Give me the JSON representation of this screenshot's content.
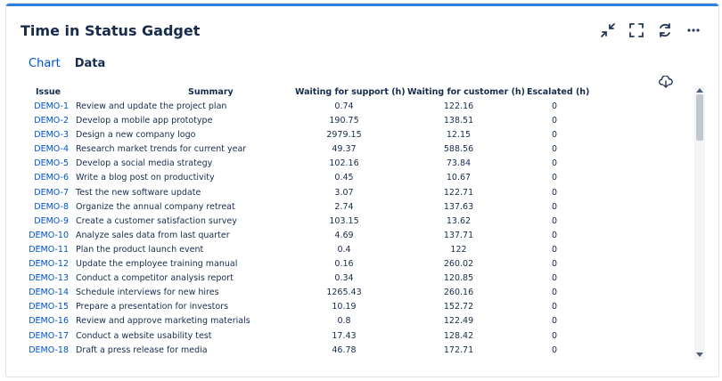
{
  "gadget": {
    "title": "Time in Status Gadget",
    "icons": [
      "collapse-icon",
      "fullscreen-icon",
      "refresh-icon",
      "more-icon"
    ],
    "accent_color": "#2b7fe0"
  },
  "tabs": [
    {
      "label": "Chart",
      "active": false
    },
    {
      "label": "Data",
      "active": true
    }
  ],
  "table": {
    "headers": {
      "issue": "Issue",
      "summary": "Summary",
      "waiting_support": "Waiting for support (h)",
      "waiting_customer": "Waiting for customer (h)",
      "escalated": "Escalated (h)"
    },
    "rows": [
      {
        "issue": "DEMO-1",
        "summary": "Review and update the project plan",
        "ws": "0.74",
        "wc": "122.16",
        "esc": "0"
      },
      {
        "issue": "DEMO-2",
        "summary": "Develop a mobile app prototype",
        "ws": "190.75",
        "wc": "138.51",
        "esc": "0"
      },
      {
        "issue": "DEMO-3",
        "summary": "Design a new company logo",
        "ws": "2979.15",
        "wc": "12.15",
        "esc": "0"
      },
      {
        "issue": "DEMO-4",
        "summary": "Research market trends for current year",
        "ws": "49.37",
        "wc": "588.56",
        "esc": "0"
      },
      {
        "issue": "DEMO-5",
        "summary": "Develop a social media strategy",
        "ws": "102.16",
        "wc": "73.84",
        "esc": "0"
      },
      {
        "issue": "DEMO-6",
        "summary": "Write a blog post on productivity",
        "ws": "0.45",
        "wc": "10.67",
        "esc": "0"
      },
      {
        "issue": "DEMO-7",
        "summary": "Test the new software update",
        "ws": "3.07",
        "wc": "122.71",
        "esc": "0"
      },
      {
        "issue": "DEMO-8",
        "summary": "Organize the annual company retreat",
        "ws": "2.74",
        "wc": "137.63",
        "esc": "0"
      },
      {
        "issue": "DEMO-9",
        "summary": "Create a customer satisfaction survey",
        "ws": "103.15",
        "wc": "13.62",
        "esc": "0"
      },
      {
        "issue": "DEMO-10",
        "summary": "Analyze sales data from last quarter",
        "ws": "4.69",
        "wc": "137.71",
        "esc": "0"
      },
      {
        "issue": "DEMO-11",
        "summary": "Plan the product launch event",
        "ws": "0.4",
        "wc": "122",
        "esc": "0"
      },
      {
        "issue": "DEMO-12",
        "summary": "Update the employee training manual",
        "ws": "0.16",
        "wc": "260.02",
        "esc": "0"
      },
      {
        "issue": "DEMO-13",
        "summary": "Conduct a competitor analysis report",
        "ws": "0.34",
        "wc": "120.85",
        "esc": "0"
      },
      {
        "issue": "DEMO-14",
        "summary": "Schedule interviews for new hires",
        "ws": "1265.43",
        "wc": "260.16",
        "esc": "0"
      },
      {
        "issue": "DEMO-15",
        "summary": "Prepare a presentation for investors",
        "ws": "10.19",
        "wc": "152.72",
        "esc": "0"
      },
      {
        "issue": "DEMO-16",
        "summary": "Review and approve marketing materials",
        "ws": "0.8",
        "wc": "122.49",
        "esc": "0"
      },
      {
        "issue": "DEMO-17",
        "summary": "Conduct a website usability test",
        "ws": "17.43",
        "wc": "128.42",
        "esc": "0"
      },
      {
        "issue": "DEMO-18",
        "summary": "Draft a press release for media",
        "ws": "46.78",
        "wc": "172.71",
        "esc": "0"
      }
    ]
  },
  "download_icon": "cloud-download-icon"
}
